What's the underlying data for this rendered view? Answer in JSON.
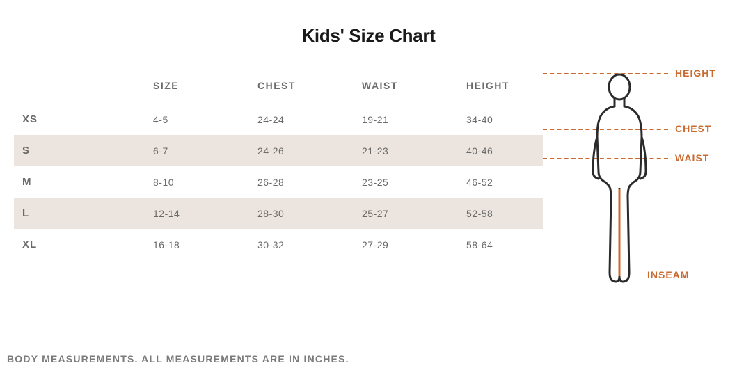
{
  "title": "Kids' Size Chart",
  "columns": [
    "SIZE",
    "CHEST",
    "WAIST",
    "HEIGHT"
  ],
  "rows": [
    {
      "label": "XS",
      "size": "4-5",
      "chest": "24-24",
      "waist": "19-21",
      "height": "34-40",
      "shaded": false
    },
    {
      "label": "S",
      "size": "6-7",
      "chest": "24-26",
      "waist": "21-23",
      "height": "40-46",
      "shaded": true
    },
    {
      "label": "M",
      "size": "8-10",
      "chest": "26-28",
      "waist": "23-25",
      "height": "46-52",
      "shaded": false
    },
    {
      "label": "L",
      "size": "12-14",
      "chest": "28-30",
      "waist": "25-27",
      "height": "52-58",
      "shaded": true
    },
    {
      "label": "XL",
      "size": "16-18",
      "chest": "30-32",
      "waist": "27-29",
      "height": "58-64",
      "shaded": false
    }
  ],
  "footnote": "BODY MEASUREMENTS. ALL MEASUREMENTS ARE IN INCHES.",
  "diagram": {
    "stroke": "#2b2b2b",
    "accent": "#ca6a2e",
    "labels": {
      "height": "HEIGHT",
      "chest": "CHEST",
      "waist": "WAIST",
      "inseam": "INSEAM"
    }
  }
}
